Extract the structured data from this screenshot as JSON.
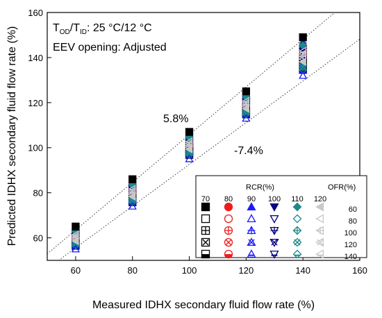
{
  "chart_data": {
    "type": "scatter",
    "title": "",
    "xlabel": "Measured IDHX secondary fluid flow rate (%)",
    "ylabel": "Predicted IDHX secondary fluid flow rate (%)",
    "xlim": [
      50,
      160
    ],
    "ylim": [
      50,
      160
    ],
    "x_ticks": [
      60,
      80,
      100,
      120,
      140,
      160
    ],
    "y_ticks": [
      60,
      80,
      100,
      120,
      140,
      160
    ],
    "grid": false,
    "annotations": {
      "temp_prefix": "T",
      "temp_sub1": "OD",
      "temp_mid": "/T",
      "temp_sub2": "ID",
      "temp_suffix": ": 25 °C/12 °C",
      "eev": "EEV opening: Adjusted",
      "upper_error": "5.8%",
      "lower_error": "-7.4%"
    },
    "error_lines": [
      {
        "label": "5.8%",
        "slope": 1.058
      },
      {
        "label": "-7.4%",
        "slope": 0.926
      }
    ],
    "legend": {
      "placement": "bottom-right",
      "rcr_title": "RCR(%)",
      "ofr_title": "OFR(%)",
      "rcr_values": [
        "70",
        "80",
        "90",
        "100",
        "110",
        "120"
      ],
      "ofr_values": [
        "60",
        "80",
        "100",
        "120",
        "140"
      ],
      "colors": [
        "#000000",
        "#ee1c1c",
        "#1a1aff",
        "#000080",
        "#1a8a8a",
        "#c8c8c8"
      ],
      "shapes": [
        "square",
        "circle",
        "triangle-up",
        "triangle-down",
        "diamond",
        "triangle-left"
      ],
      "fill_styles": [
        "filled",
        "open",
        "plus",
        "cross",
        "half",
        "right-arrow"
      ]
    },
    "series_note": "RCR 70-120 x OFR 60-140 combinations",
    "points": [
      {
        "x": 60,
        "y_range": [
          55,
          65
        ]
      },
      {
        "x": 80,
        "y_range": [
          74,
          86
        ]
      },
      {
        "x": 100,
        "y_range": [
          95,
          107
        ]
      },
      {
        "x": 120,
        "y_range": [
          113,
          125
        ]
      },
      {
        "x": 140,
        "y_range": [
          132,
          149
        ]
      }
    ]
  }
}
